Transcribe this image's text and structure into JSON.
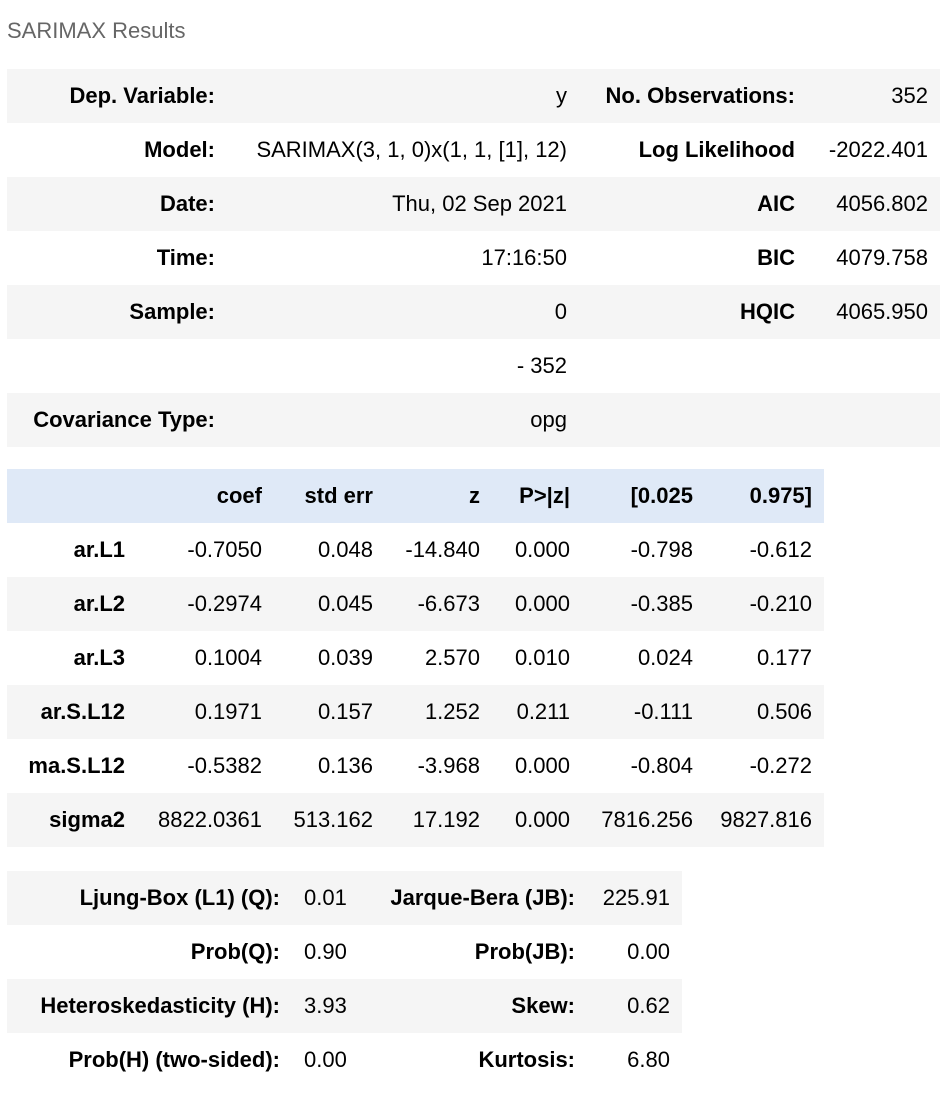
{
  "caption": "SARIMAX Results",
  "summary": {
    "rows": [
      {
        "label1": "Dep. Variable:",
        "value1": "y",
        "label2": "No. Observations:",
        "value2": "352"
      },
      {
        "label1": "Model:",
        "value1": "SARIMAX(3, 1, 0)x(1, 1, [1], 12)",
        "label2": "Log Likelihood",
        "value2": "-2022.401"
      },
      {
        "label1": "Date:",
        "value1": "Thu, 02 Sep 2021",
        "label2": "AIC",
        "value2": "4056.802"
      },
      {
        "label1": "Time:",
        "value1": "17:16:50",
        "label2": "BIC",
        "value2": "4079.758"
      },
      {
        "label1": "Sample:",
        "value1": "0",
        "label2": "HQIC",
        "value2": "4065.950"
      },
      {
        "label1": "",
        "value1": "- 352",
        "label2": "",
        "value2": ""
      },
      {
        "label1": "Covariance Type:",
        "value1": "opg",
        "label2": "",
        "value2": ""
      }
    ]
  },
  "coefficients": {
    "headers": [
      "",
      "coef",
      "std err",
      "z",
      "P>|z|",
      "[0.025",
      "0.975]"
    ],
    "rows": [
      {
        "name": "ar.L1",
        "coef": "-0.7050",
        "std_err": "0.048",
        "z": "-14.840",
        "p": "0.000",
        "lo": "-0.798",
        "hi": "-0.612"
      },
      {
        "name": "ar.L2",
        "coef": "-0.2974",
        "std_err": "0.045",
        "z": "-6.673",
        "p": "0.000",
        "lo": "-0.385",
        "hi": "-0.210"
      },
      {
        "name": "ar.L3",
        "coef": "0.1004",
        "std_err": "0.039",
        "z": "2.570",
        "p": "0.010",
        "lo": "0.024",
        "hi": "0.177"
      },
      {
        "name": "ar.S.L12",
        "coef": "0.1971",
        "std_err": "0.157",
        "z": "1.252",
        "p": "0.211",
        "lo": "-0.111",
        "hi": "0.506"
      },
      {
        "name": "ma.S.L12",
        "coef": "-0.5382",
        "std_err": "0.136",
        "z": "-3.968",
        "p": "0.000",
        "lo": "-0.804",
        "hi": "-0.272"
      },
      {
        "name": "sigma2",
        "coef": "8822.0361",
        "std_err": "513.162",
        "z": "17.192",
        "p": "0.000",
        "lo": "7816.256",
        "hi": "9827.816"
      }
    ]
  },
  "diagnostics": {
    "rows": [
      {
        "label1": "Ljung-Box (L1) (Q):",
        "value1": "0.01",
        "label2": "Jarque-Bera (JB):",
        "value2": "225.91"
      },
      {
        "label1": "Prob(Q):",
        "value1": "0.90",
        "label2": "Prob(JB):",
        "value2": "0.00"
      },
      {
        "label1": "Heteroskedasticity (H):",
        "value1": "3.93",
        "label2": "Skew:",
        "value2": "0.62"
      },
      {
        "label1": "Prob(H) (two-sided):",
        "value1": "0.00",
        "label2": "Kurtosis:",
        "value2": "6.80"
      }
    ]
  }
}
